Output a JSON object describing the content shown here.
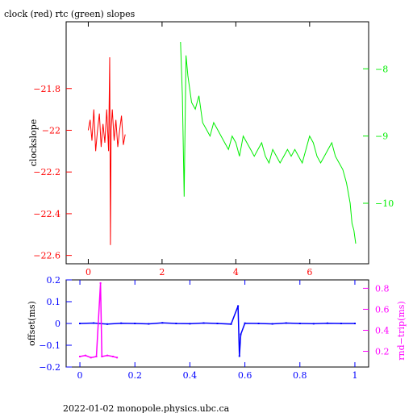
{
  "colors": {
    "red": "#ff0000",
    "green": "#00ee00",
    "blue": "#0000ff",
    "magenta": "#ff00ff",
    "black": "#000000"
  },
  "footer": "2022-01-02 monopole.physics.ubc.ca",
  "chart_data": [
    {
      "type": "line",
      "title": "clock (red) rtc (green) slopes",
      "ylabel": "clockslope",
      "xlabel": "",
      "xlim": [
        -0.6,
        7.6
      ],
      "x_ticks": [
        0,
        2,
        4,
        6
      ],
      "x_tick_labels": [
        "0",
        "2",
        "4",
        "6"
      ],
      "ylim_left": [
        -22.64,
        -21.48
      ],
      "y_left_ticks": [
        -21.8,
        -22,
        -22.2,
        -22.4,
        -22.6
      ],
      "y_left_tick_labels": [
        "−21.8",
        "−22",
        "−22.2",
        "−22.4",
        "−22.6"
      ],
      "ylim_right": [
        -10.9,
        -7.3
      ],
      "y_right_ticks": [
        -8,
        -9,
        -10
      ],
      "y_right_tick_labels": [
        "−8",
        "−9",
        "−10"
      ],
      "grid": false,
      "series": [
        {
          "name": "clock",
          "color": "#ff0000",
          "axis": "left",
          "x": [
            0.0,
            0.05,
            0.1,
            0.15,
            0.2,
            0.25,
            0.3,
            0.35,
            0.4,
            0.45,
            0.5,
            0.55,
            0.58,
            0.6,
            0.62,
            0.65,
            0.7,
            0.75,
            0.8,
            0.85,
            0.9,
            0.95,
            1.0
          ],
          "values": [
            -22.0,
            -21.95,
            -22.05,
            -21.9,
            -22.1,
            -22.0,
            -21.92,
            -22.08,
            -21.97,
            -22.06,
            -21.9,
            -22.1,
            -21.65,
            -22.55,
            -22.0,
            -21.9,
            -22.05,
            -21.95,
            -22.08,
            -22.0,
            -21.93,
            -22.07,
            -22.02
          ]
        },
        {
          "name": "rtc",
          "color": "#00ee00",
          "axis": "right",
          "x": [
            2.5,
            2.55,
            2.6,
            2.65,
            2.7,
            2.8,
            2.9,
            3.0,
            3.1,
            3.2,
            3.3,
            3.4,
            3.5,
            3.6,
            3.7,
            3.8,
            3.9,
            4.0,
            4.1,
            4.2,
            4.3,
            4.4,
            4.5,
            4.6,
            4.7,
            4.8,
            4.9,
            5.0,
            5.1,
            5.2,
            5.3,
            5.4,
            5.5,
            5.6,
            5.7,
            5.8,
            5.9,
            6.0,
            6.1,
            6.2,
            6.3,
            6.4,
            6.5,
            6.6,
            6.7,
            6.8,
            6.9,
            7.0,
            7.1,
            7.15,
            7.2,
            7.25
          ],
          "values": [
            -7.6,
            -8.4,
            -9.9,
            -7.8,
            -8.1,
            -8.5,
            -8.6,
            -8.4,
            -8.8,
            -8.9,
            -9.0,
            -8.8,
            -8.9,
            -9.0,
            -9.1,
            -9.2,
            -9.0,
            -9.1,
            -9.3,
            -9.0,
            -9.1,
            -9.2,
            -9.3,
            -9.2,
            -9.1,
            -9.3,
            -9.4,
            -9.2,
            -9.3,
            -9.4,
            -9.3,
            -9.2,
            -9.3,
            -9.2,
            -9.3,
            -9.4,
            -9.2,
            -9.0,
            -9.1,
            -9.3,
            -9.4,
            -9.3,
            -9.2,
            -9.1,
            -9.3,
            -9.4,
            -9.5,
            -9.7,
            -10.0,
            -10.3,
            -10.4,
            -10.6
          ]
        }
      ]
    },
    {
      "type": "scatter",
      "xlabel": "",
      "ylabel": "offset(ms)",
      "y2label": "rnd−trip(ms)",
      "xlim": [
        -0.05,
        1.05
      ],
      "x_ticks": [
        0,
        0.2,
        0.4,
        0.6,
        0.8,
        1
      ],
      "x_tick_labels": [
        "0",
        "0.2",
        "0.4",
        "0.6",
        "0.8",
        "1"
      ],
      "ylim_left": [
        -0.2,
        0.2
      ],
      "y_left_ticks": [
        0.2,
        0.1,
        0,
        -0.1,
        -0.2
      ],
      "y_left_tick_labels": [
        "0.2",
        "0.1",
        "0",
        "−0.1",
        "−0.2"
      ],
      "ylim_right": [
        0.05,
        0.88
      ],
      "y_right_ticks": [
        0.8,
        0.6,
        0.4,
        0.2
      ],
      "y_right_tick_labels": [
        "0.8",
        "0.6",
        "0.4",
        "0.2"
      ],
      "grid": false,
      "series": [
        {
          "name": "offset",
          "color": "#0000ff",
          "axis": "left",
          "x": [
            0,
            0.05,
            0.1,
            0.15,
            0.2,
            0.25,
            0.3,
            0.35,
            0.4,
            0.45,
            0.5,
            0.55,
            0.575,
            0.58,
            0.585,
            0.6,
            0.65,
            0.7,
            0.75,
            0.8,
            0.85,
            0.9,
            0.95,
            1.0
          ],
          "values": [
            0.0,
            0.002,
            -0.003,
            0.001,
            0.0,
            -0.002,
            0.003,
            0.0,
            -0.001,
            0.002,
            0.0,
            -0.003,
            0.08,
            -0.15,
            -0.05,
            0.001,
            0.0,
            -0.002,
            0.002,
            0.0,
            -0.001,
            0.001,
            0.0,
            0.0
          ]
        },
        {
          "name": "rnd-trip",
          "color": "#ff00ff",
          "axis": "right",
          "x": [
            0,
            0.02,
            0.04,
            0.06,
            0.075,
            0.08,
            0.1,
            0.12,
            0.135
          ],
          "values": [
            0.15,
            0.16,
            0.14,
            0.15,
            0.85,
            0.15,
            0.16,
            0.15,
            0.14
          ]
        }
      ]
    }
  ]
}
